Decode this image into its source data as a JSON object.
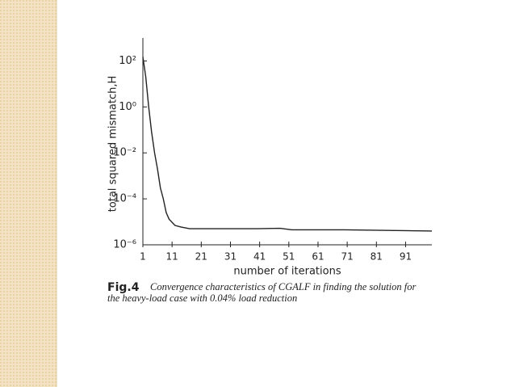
{
  "chart_data": {
    "type": "line",
    "log_y": true,
    "color": "#222222",
    "x_label": "number of iterations",
    "y_label": "total squared mismatch,H",
    "x": [
      1,
      2,
      3,
      4,
      5,
      6,
      7,
      8,
      9,
      10,
      12,
      14,
      17,
      30,
      40,
      48,
      52,
      70,
      100
    ],
    "values": [
      150,
      20,
      1,
      0.08,
      0.01,
      0.002,
      0.0003,
      0.0001,
      2.5e-05,
      1.3e-05,
      7e-06,
      6e-06,
      5e-06,
      5e-06,
      5e-06,
      5.2e-06,
      4.5e-06,
      4.5e-06,
      4e-06
    ],
    "xlim": [
      1,
      100
    ],
    "xticks": [
      1,
      11,
      21,
      31,
      41,
      51,
      61,
      71,
      81,
      91
    ],
    "ylim": [
      1e-06,
      1000
    ],
    "yticks": [
      {
        "value": 1e-06,
        "label": "10⁻⁶"
      },
      {
        "value": 0.0001,
        "label": "10⁻⁴"
      },
      {
        "value": 0.01,
        "label": "10⁻²"
      },
      {
        "value": 1,
        "label": "10⁰"
      },
      {
        "value": 100,
        "label": "10²"
      }
    ],
    "caption_label": "Fig.4",
    "caption_lines": [
      "Convergence characteristics of CGALF in finding the solution for",
      "the heavy-load case with 0.04% load reduction"
    ]
  }
}
